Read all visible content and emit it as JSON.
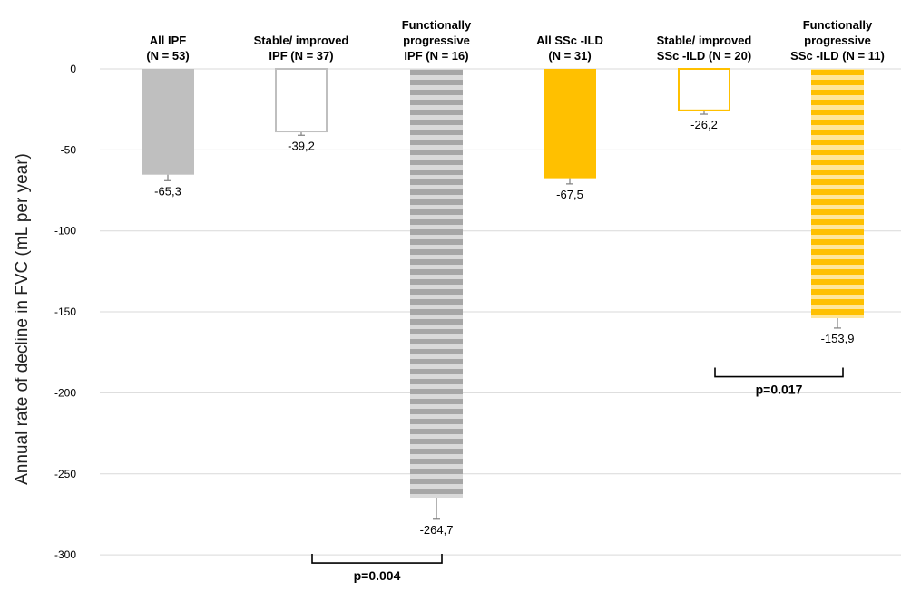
{
  "chart_data": {
    "type": "bar",
    "title": "",
    "xlabel": "",
    "ylabel": "Annual rate of decline in FVC (mL per year)",
    "ylim": [
      -300,
      0
    ],
    "yticks": [
      0,
      -50,
      -100,
      -150,
      -200,
      -250,
      -300
    ],
    "grid": true,
    "categories": [
      [
        "All IPF",
        "(N = 53)"
      ],
      [
        "Stable/ improved",
        "IPF (N = 37)"
      ],
      [
        "Functionally",
        "progressive",
        "IPF (N = 16)"
      ],
      [
        "All  SSc -ILD",
        "(N = 31)"
      ],
      [
        "Stable/ improved",
        "SSc -ILD (N = 20)"
      ],
      [
        "Functionally",
        "progressive",
        "SSc -ILD (N = 11)"
      ]
    ],
    "values": [
      -65.3,
      -39.2,
      -264.7,
      -67.5,
      -26.2,
      -153.9
    ],
    "value_labels": [
      "-65,3",
      "-39,2",
      "-264,7",
      "-67,5",
      "-26,2",
      "-153,9"
    ],
    "error_low": [
      -69,
      -41,
      -278,
      -71,
      -28,
      -160
    ],
    "styles": [
      {
        "fill": "#bfbfbf",
        "stroke": "#bfbfbf",
        "pattern": "solid"
      },
      {
        "fill": "#ffffff",
        "stroke": "#bfbfbf",
        "pattern": "outline"
      },
      {
        "fill": "#a6a6a6",
        "stroke": "#a6a6a6",
        "pattern": "stripes"
      },
      {
        "fill": "#ffc000",
        "stroke": "#ffc000",
        "pattern": "solid"
      },
      {
        "fill": "#ffffff",
        "stroke": "#ffc000",
        "pattern": "outline"
      },
      {
        "fill": "#ffc000",
        "stroke": "#ffc000",
        "pattern": "stripes"
      }
    ],
    "annotations": [
      {
        "text": "p=0.004",
        "from_category": 1,
        "to_category": 2,
        "y": -305
      },
      {
        "text": "p=0.017",
        "from_category": 4,
        "to_category": 5,
        "y": -190
      }
    ]
  }
}
